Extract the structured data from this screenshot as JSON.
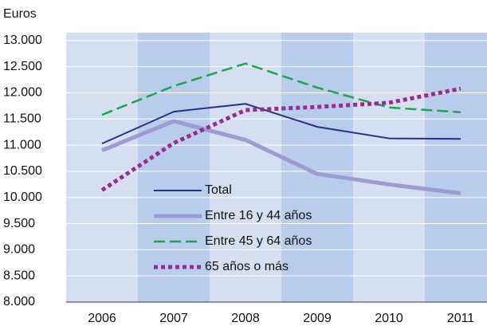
{
  "chart_data": {
    "type": "line",
    "ylabel": "Euros",
    "categories": [
      "2006",
      "2007",
      "2008",
      "2009",
      "2010",
      "2011"
    ],
    "series": [
      {
        "name": "Total",
        "color": "#2a2f86",
        "style": "solid",
        "width": 2,
        "values": [
          11030,
          11640,
          11790,
          11350,
          11130,
          11120
        ]
      },
      {
        "name": "Entre 16 y 44 años",
        "color": "#9d9bd1",
        "style": "solid",
        "width": 5,
        "values": [
          10900,
          11460,
          11100,
          10450,
          10250,
          10080
        ]
      },
      {
        "name": "Entre 45 y 64 años",
        "color": "#16a84a",
        "style": "dashed",
        "width": 2.5,
        "values": [
          11580,
          12130,
          12560,
          12100,
          11720,
          11630
        ]
      },
      {
        "name": "65 años o más",
        "color": "#9a2a8d",
        "style": "dotted",
        "width": 5,
        "values": [
          10140,
          11040,
          11670,
          11730,
          11810,
          12080
        ]
      }
    ],
    "ylim": [
      8000,
      13150
    ],
    "yticks": [
      {
        "value": 8000,
        "label": "8.000"
      },
      {
        "value": 8500,
        "label": "8.500"
      },
      {
        "value": 9000,
        "label": "9.000"
      },
      {
        "value": 9500,
        "label": "9.500"
      },
      {
        "value": 10000,
        "label": "10.000"
      },
      {
        "value": 10500,
        "label": "10.500"
      },
      {
        "value": 11000,
        "label": "11.000"
      },
      {
        "value": 11500,
        "label": "11.500"
      },
      {
        "value": 12000,
        "label": "12.000"
      },
      {
        "value": 12500,
        "label": "12.500"
      },
      {
        "value": 13000,
        "label": "13.000"
      }
    ],
    "grid": true,
    "legend": "lower left"
  }
}
